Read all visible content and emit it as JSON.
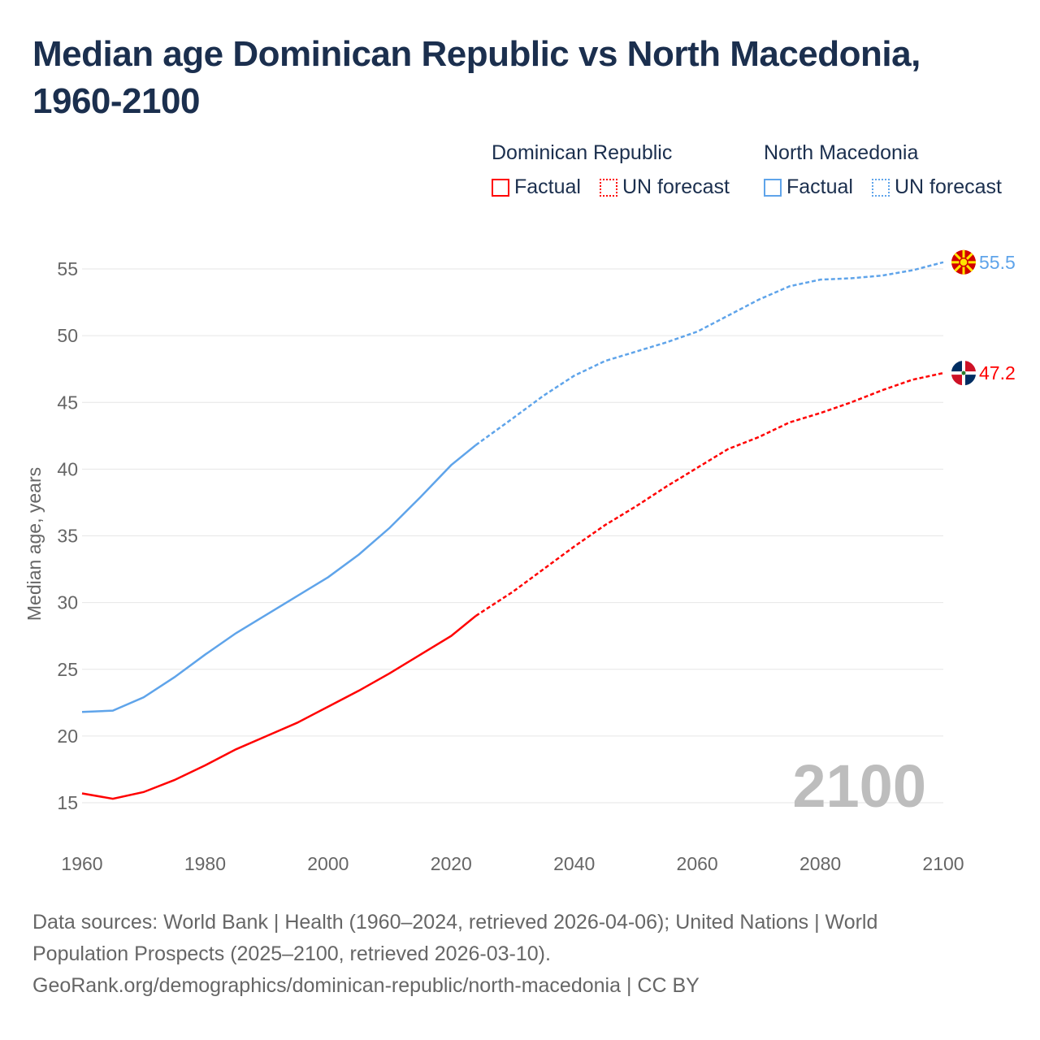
{
  "title": "Median age Dominican Republic vs North Macedonia, 1960-2100",
  "legend": {
    "groups": [
      {
        "name": "Dominican Republic",
        "factual": "Factual",
        "forecast": "UN forecast",
        "color": "#ff0000"
      },
      {
        "name": "North Macedonia",
        "factual": "Factual",
        "forecast": "UN forecast",
        "color": "#5fa4ea"
      }
    ]
  },
  "year_watermark": "2100",
  "footer": {
    "line1": "Data sources: World Bank | Health (1960–2024, retrieved 2026-04-06); United Nations | World",
    "line2": "Population Prospects (2025–2100, retrieved 2026-03-10).",
    "line3": "GeoRank.org/demographics/dominican-republic/north-macedonia | CC BY"
  },
  "chart_data": {
    "type": "line",
    "title": "Median age Dominican Republic vs North Macedonia, 1960-2100",
    "xlabel": "",
    "ylabel": "Median age, years",
    "xlim": [
      1960,
      2100
    ],
    "ylim": [
      15,
      55
    ],
    "x_ticks": [
      "1960",
      "1980",
      "2000",
      "2020",
      "2040",
      "2060",
      "2080",
      "2100"
    ],
    "y_ticks": [
      "15",
      "20",
      "25",
      "30",
      "35",
      "40",
      "45",
      "50",
      "55"
    ],
    "grid": true,
    "forecast_start": 2024,
    "x": [
      1960,
      1965,
      1970,
      1975,
      1980,
      1985,
      1990,
      1995,
      2000,
      2005,
      2010,
      2015,
      2020,
      2024,
      2030,
      2035,
      2040,
      2045,
      2050,
      2055,
      2060,
      2065,
      2070,
      2075,
      2080,
      2085,
      2090,
      2095,
      2100
    ],
    "series": [
      {
        "name": "North Macedonia",
        "color": "#5fa4ea",
        "end_label": "55.5",
        "values": [
          21.8,
          21.9,
          22.9,
          24.4,
          26.1,
          27.7,
          29.1,
          30.5,
          31.9,
          33.6,
          35.6,
          37.9,
          40.3,
          41.8,
          43.8,
          45.5,
          47.0,
          48.1,
          48.8,
          49.5,
          50.3,
          51.5,
          52.7,
          53.7,
          54.2,
          54.3,
          54.5,
          54.9,
          55.5
        ]
      },
      {
        "name": "Dominican Republic",
        "color": "#ff0000",
        "end_label": "47.2",
        "values": [
          15.7,
          15.3,
          15.8,
          16.7,
          17.8,
          19.0,
          20.0,
          21.0,
          22.2,
          23.4,
          24.7,
          26.1,
          27.5,
          29.0,
          30.8,
          32.5,
          34.2,
          35.8,
          37.2,
          38.7,
          40.1,
          41.5,
          42.4,
          43.5,
          44.2,
          45.0,
          45.9,
          46.7,
          47.2
        ]
      }
    ]
  }
}
